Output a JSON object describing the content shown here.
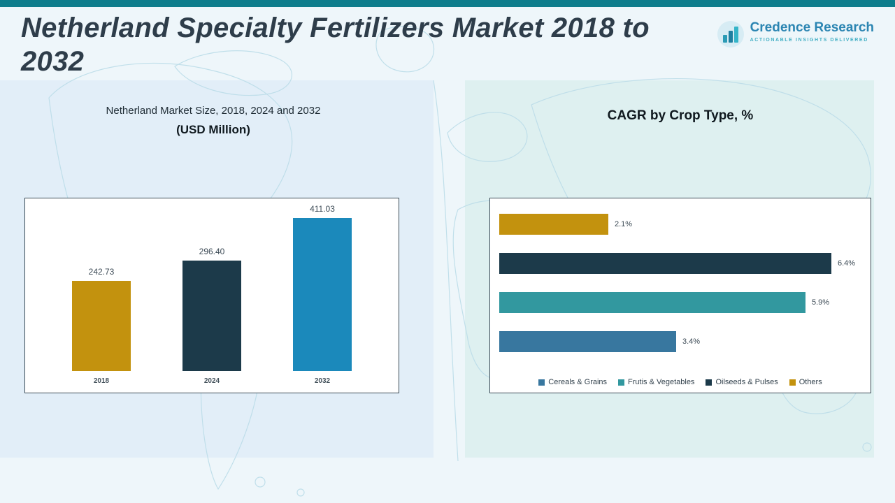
{
  "page": {
    "title": "Netherland Specialty Fertilizers Market 2018 to 2032",
    "accent_color": "#0e7d8c",
    "background_color": "#eef6fa"
  },
  "logo": {
    "name": "Credence Research",
    "tagline": "Actionable Insights Delivered",
    "icon": "bar-chart-logo-icon",
    "name_color": "#2b85b2",
    "tagline_color": "#45b0c5"
  },
  "chart_data": [
    {
      "type": "bar",
      "orientation": "vertical",
      "title": "Netherland Market Size, 2018, 2024 and 2032",
      "subtitle": "(USD Million)",
      "categories": [
        "2018",
        "2024",
        "2032"
      ],
      "values": [
        242.73,
        296.4,
        411.03
      ],
      "value_labels": [
        "242.73",
        "296.40",
        "411.03"
      ],
      "colors": [
        "#c3920e",
        "#1c3a4a",
        "#1b89bb"
      ],
      "xlabel": "",
      "ylabel": "",
      "ylim": [
        0,
        450
      ],
      "grid": false,
      "legend_position": "none"
    },
    {
      "type": "bar",
      "orientation": "horizontal",
      "title": "CAGR by Crop Type, %",
      "categories": [
        "Others",
        "Oilseeds & Pulses",
        "Frutis & Vegetables",
        "Cereals & Grains"
      ],
      "values": [
        2.1,
        6.4,
        5.9,
        3.4
      ],
      "value_labels": [
        "2.1%",
        "6.4%",
        "5.9%",
        "3.4%"
      ],
      "colors": [
        "#c3920e",
        "#1c3a4a",
        "#32989f",
        "#38779f"
      ],
      "xlabel": "",
      "ylabel": "",
      "xlim": [
        0,
        7
      ],
      "grid": false,
      "legend_position": "bottom",
      "legend": [
        {
          "label": "Cereals & Grains",
          "color": "#38779f"
        },
        {
          "label": "Frutis & Vegetables",
          "color": "#32989f"
        },
        {
          "label": "Oilseeds & Pulses",
          "color": "#1c3a4a"
        },
        {
          "label": "Others",
          "color": "#c3920e"
        }
      ]
    }
  ]
}
